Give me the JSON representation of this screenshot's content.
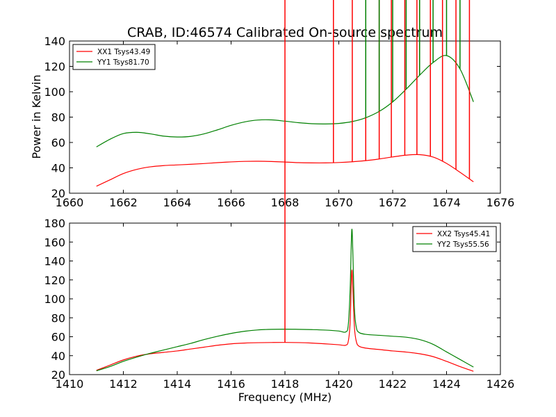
{
  "chart_data": [
    {
      "type": "line",
      "title": "CRAB, ID:46574 Calibrated On-source spectrum",
      "xlabel": "",
      "ylabel": "Power in Kelvin",
      "xlim": [
        1660,
        1676
      ],
      "ylim": [
        20,
        140
      ],
      "xticks": [
        1660,
        1662,
        1664,
        1666,
        1668,
        1670,
        1672,
        1674,
        1676
      ],
      "yticks": [
        20,
        40,
        60,
        80,
        100,
        120,
        140
      ],
      "legend_position": "top-left",
      "series": [
        {
          "name": "XX1 Tsys43.49",
          "color": "#ff0000",
          "x": [
            1661.0,
            1661.5,
            1662.0,
            1662.5,
            1663.0,
            1663.5,
            1664.0,
            1664.5,
            1665.0,
            1665.5,
            1666.0,
            1666.5,
            1667.0,
            1667.5,
            1668.0,
            1668.5,
            1669.0,
            1669.5,
            1670.0,
            1670.5,
            1671.0,
            1671.5,
            1672.0,
            1672.5,
            1673.0,
            1673.5,
            1674.0,
            1674.5,
            1675.0
          ],
          "y": [
            25.5,
            30.5,
            35.5,
            38.8,
            40.8,
            41.8,
            42.3,
            42.8,
            43.4,
            44.1,
            44.7,
            45.1,
            45.2,
            45.0,
            44.6,
            44.1,
            43.9,
            43.9,
            44.2,
            44.8,
            45.7,
            47.0,
            48.6,
            50.0,
            50.4,
            48.5,
            43.5,
            36.5,
            29.0
          ]
        },
        {
          "name": "YY1 Tsys81.70",
          "color": "#008000",
          "x": [
            1661.0,
            1661.5,
            1662.0,
            1662.5,
            1663.0,
            1663.5,
            1664.0,
            1664.5,
            1665.0,
            1665.5,
            1666.0,
            1666.5,
            1667.0,
            1667.5,
            1668.0,
            1668.5,
            1669.0,
            1669.5,
            1670.0,
            1670.5,
            1671.0,
            1671.5,
            1672.0,
            1672.5,
            1673.0,
            1673.5,
            1674.0,
            1674.5,
            1675.0
          ],
          "y": [
            56.5,
            62.5,
            67.0,
            68.0,
            66.8,
            65.0,
            64.3,
            64.8,
            66.8,
            70.0,
            73.5,
            76.2,
            77.7,
            77.8,
            76.8,
            75.6,
            74.8,
            74.6,
            75.0,
            76.5,
            79.5,
            84.5,
            92.0,
            102.0,
            113.0,
            123.0,
            128.5,
            118.0,
            92.0
          ]
        }
      ],
      "spikes": [
        {
          "series": "XX1 Tsys43.49",
          "x": [
            1669.8,
            1670.5,
            1671.0,
            1671.5,
            1671.95,
            1672.45,
            1672.9,
            1673.4,
            1673.85,
            1674.35,
            1674.85
          ],
          "height": [
            0.8,
            1.0,
            1.2,
            1.8,
            2.5,
            3.2,
            4.0,
            4.0,
            4.5,
            3.5,
            2.8
          ]
        },
        {
          "series": "YY1 Tsys81.70",
          "x": [
            1671.0,
            1671.5,
            1672.0,
            1672.5,
            1673.0,
            1673.5,
            1674.0,
            1674.5
          ],
          "height": [
            1.2,
            1.5,
            1.8,
            2.0,
            2.0,
            2.0,
            2.0,
            1.8
          ]
        }
      ]
    },
    {
      "type": "line",
      "title": "",
      "xlabel": "Frequency (MHz)",
      "ylabel": "",
      "xlim": [
        1410,
        1426
      ],
      "ylim": [
        20,
        180
      ],
      "xticks": [
        1410,
        1412,
        1414,
        1416,
        1418,
        1420,
        1422,
        1424,
        1426
      ],
      "yticks": [
        20,
        40,
        60,
        80,
        100,
        120,
        140,
        160,
        180
      ],
      "legend_position": "top-right",
      "series": [
        {
          "name": "XX2 Tsys45.41",
          "color": "#ff0000",
          "x": [
            1411.0,
            1411.5,
            1412.0,
            1412.5,
            1413.0,
            1413.5,
            1414.0,
            1414.5,
            1415.0,
            1415.5,
            1416.0,
            1416.5,
            1417.0,
            1417.5,
            1418.0,
            1418.5,
            1419.0,
            1419.5,
            1420.0,
            1420.25,
            1420.35,
            1420.42,
            1420.48,
            1420.52,
            1420.58,
            1420.65,
            1420.75,
            1421.0,
            1421.5,
            1422.0,
            1422.5,
            1423.0,
            1423.5,
            1424.0,
            1424.5,
            1425.0
          ],
          "y": [
            24.5,
            30.0,
            35.5,
            39.5,
            42.0,
            43.5,
            45.0,
            47.0,
            49.0,
            51.0,
            52.5,
            53.3,
            53.7,
            53.9,
            54.0,
            53.8,
            53.3,
            52.5,
            51.5,
            51.0,
            55.0,
            75.0,
            129.0,
            112.0,
            70.0,
            55.0,
            50.0,
            48.0,
            46.5,
            45.0,
            43.8,
            42.0,
            39.0,
            34.0,
            28.5,
            23.5
          ]
        },
        {
          "name": "YY2 Tsys55.56",
          "color": "#008000",
          "x": [
            1411.0,
            1411.5,
            1412.0,
            1412.5,
            1413.0,
            1413.5,
            1414.0,
            1414.5,
            1415.0,
            1415.5,
            1416.0,
            1416.5,
            1417.0,
            1417.5,
            1418.0,
            1418.5,
            1419.0,
            1419.5,
            1420.0,
            1420.25,
            1420.35,
            1420.42,
            1420.48,
            1420.52,
            1420.58,
            1420.65,
            1420.75,
            1421.0,
            1421.5,
            1422.0,
            1422.5,
            1423.0,
            1423.5,
            1424.0,
            1424.5,
            1425.0
          ],
          "y": [
            24.0,
            28.5,
            34.0,
            38.5,
            42.5,
            46.0,
            49.5,
            53.0,
            57.0,
            60.5,
            63.5,
            65.8,
            67.2,
            67.8,
            68.0,
            67.8,
            67.5,
            67.0,
            66.0,
            65.0,
            72.0,
            110.0,
            172.0,
            150.0,
            90.0,
            70.0,
            64.5,
            62.5,
            61.5,
            60.5,
            59.5,
            57.0,
            52.0,
            44.0,
            36.0,
            28.0
          ]
        }
      ],
      "spikes": [
        {
          "series": "XX2 Tsys45.41",
          "x": [
            1418.0
          ],
          "height": [
            2.0
          ]
        }
      ]
    }
  ]
}
